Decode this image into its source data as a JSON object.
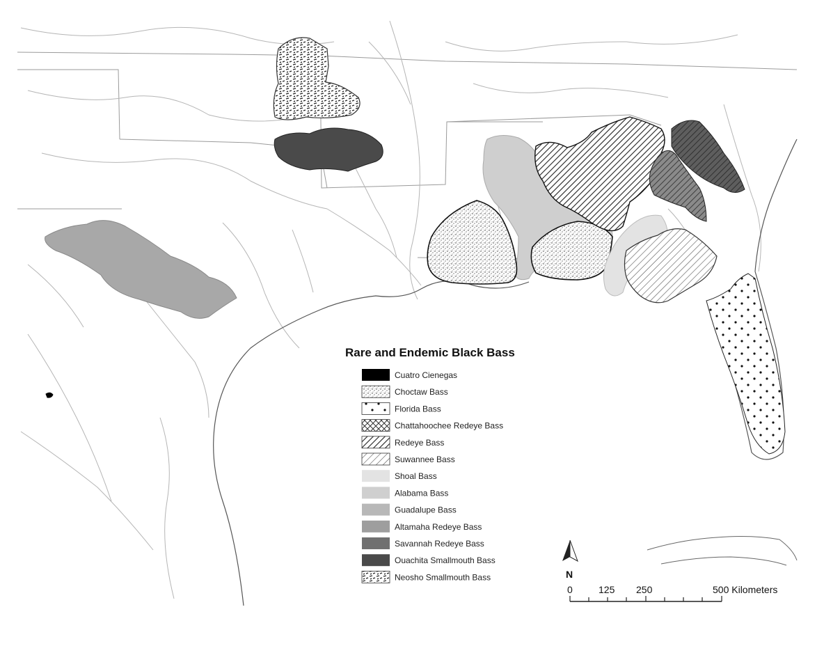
{
  "legend": {
    "title": "Rare and Endemic Black Bass",
    "items": [
      {
        "label": "Cuatro Cienegas",
        "fill": "#000000",
        "pattern": "solid"
      },
      {
        "label": "Choctaw Bass",
        "fill": "#ffffff",
        "pattern": "stipple"
      },
      {
        "label": "Florida Bass",
        "fill": "#ffffff",
        "pattern": "dots"
      },
      {
        "label": "Chattahoochee Redeye Bass",
        "fill": "#ffffff",
        "pattern": "crosshatch"
      },
      {
        "label": "Redeye Bass",
        "fill": "#ffffff",
        "pattern": "hatch-dense"
      },
      {
        "label": "Suwannee Bass",
        "fill": "#ffffff",
        "pattern": "hatch-light"
      },
      {
        "label": "Shoal Bass",
        "fill": "#e3e3e3",
        "pattern": "solid"
      },
      {
        "label": "Alabama Bass",
        "fill": "#cfcfcf",
        "pattern": "solid"
      },
      {
        "label": "Guadalupe Bass",
        "fill": "#b8b8b8",
        "pattern": "solid"
      },
      {
        "label": "Altamaha Redeye Bass",
        "fill": "#9e9e9e",
        "pattern": "solid"
      },
      {
        "label": "Savannah Redeye Bass",
        "fill": "#707070",
        "pattern": "solid"
      },
      {
        "label": "Ouachita Smallmouth Bass",
        "fill": "#4a4a4a",
        "pattern": "solid"
      },
      {
        "label": "Neosho Smallmouth Bass",
        "fill": "#ffffff",
        "pattern": "dashes"
      }
    ]
  },
  "scale_bar": {
    "labels": [
      "0",
      "125",
      "250",
      "500 Kilometers"
    ]
  },
  "north_arrow": {
    "label": "N"
  }
}
